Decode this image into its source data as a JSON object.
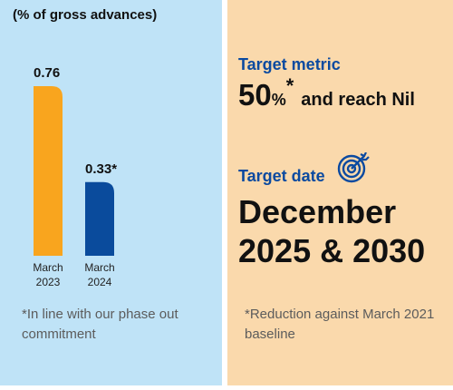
{
  "left_panel": {
    "unit_label": "(% of gross advances)",
    "footnote": "*In line with our phase out commitment"
  },
  "chart_data": {
    "type": "bar",
    "categories": [
      [
        "March",
        "2023"
      ],
      [
        "March",
        "2024"
      ]
    ],
    "values": [
      0.76,
      0.33
    ],
    "data_labels": [
      "0.76",
      "0.33*"
    ],
    "ylim": [
      0,
      0.8
    ],
    "colors": [
      "#f9a51e",
      "#0a4b9c"
    ],
    "title": "",
    "xlabel": "",
    "ylabel": "(% of gross advances)"
  },
  "right_panel": {
    "target_metric_heading": "Target metric",
    "target_metric_number": "50",
    "target_metric_percent": "%",
    "target_metric_star": "*",
    "target_metric_tail": "and reach Nil",
    "target_date_heading": "Target date",
    "target_date_line1": "December",
    "target_date_line2": "2025 & 2030",
    "footnote": "*Reduction against March 2021 baseline",
    "icon": "target-icon",
    "accent_color": "#0b4aa0"
  }
}
